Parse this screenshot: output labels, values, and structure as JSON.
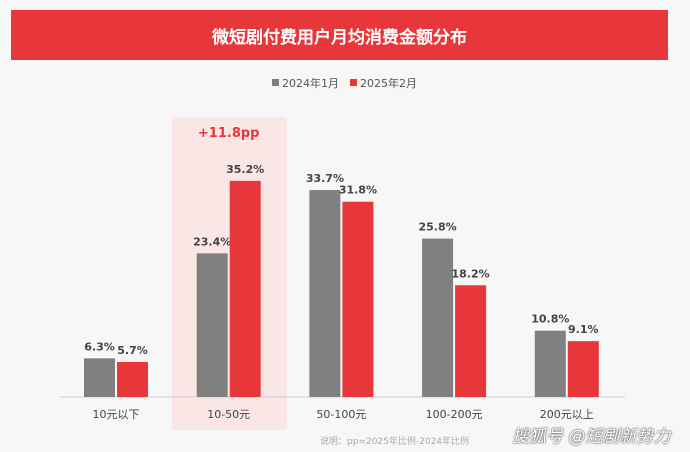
{
  "chart_data": {
    "type": "bar",
    "title": "微短剧付费用户月均消费金额分布",
    "categories": [
      "10元以下",
      "10-50元",
      "50-100元",
      "100-200元",
      "200元以上"
    ],
    "series": [
      {
        "name": "2024年1月",
        "color": "#808080",
        "values": [
          6.3,
          23.4,
          33.7,
          25.8,
          10.8
        ]
      },
      {
        "name": "2025年2月",
        "color": "#e8373a",
        "values": [
          5.7,
          35.2,
          31.8,
          18.2,
          9.1
        ]
      }
    ],
    "ylim": [
      0,
      40
    ],
    "legend": "top-center",
    "highlight": {
      "category": "10-50元",
      "label": "+11.8pp",
      "color": "#fbe6e6"
    },
    "xlabel": "",
    "ylabel": ""
  },
  "watermark": "@短剧新势力",
  "watermark_prefix": "搜狐号",
  "note": "说明：pp=2025年比例-2024年比例"
}
